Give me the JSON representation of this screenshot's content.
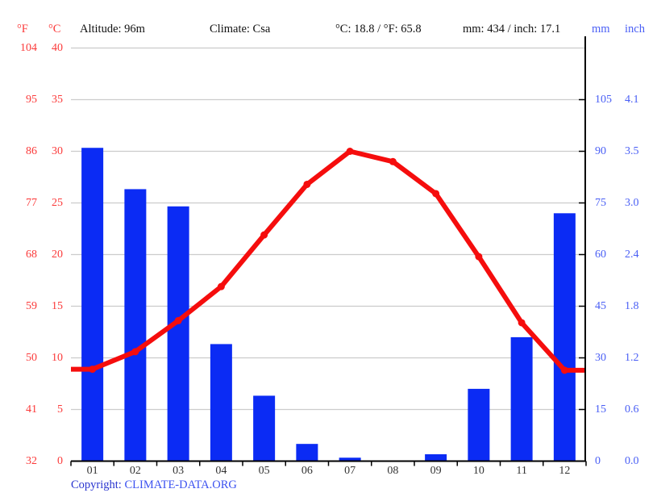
{
  "header": {
    "unit_f": "°F",
    "unit_c": "°C",
    "altitude": "Altitude: 96m",
    "climate": "Climate: Csa",
    "avg_temp": "°C: 18.8 / °F: 65.8",
    "total_precip": "mm: 434 / inch: 17.1",
    "unit_mm": "mm",
    "unit_inch": "inch"
  },
  "footer": {
    "copyright_label": "Copyright:",
    "copyright_link": "CLIMATE-DATA.ORG"
  },
  "colors": {
    "temp_line": "#f50d0d",
    "temp_axis_text": "#fb3a3a",
    "precip_bar": "#0b2bf4",
    "precip_axis_text": "#4a5ff5",
    "grid": "#cccccc",
    "axis": "#000000",
    "header_text": "#111111",
    "month_text": "#333333"
  },
  "chart_data": {
    "type": "combo",
    "title": "Climate graph (Csa), Altitude 96m",
    "categories": [
      "01",
      "02",
      "03",
      "04",
      "05",
      "06",
      "07",
      "08",
      "09",
      "10",
      "11",
      "12"
    ],
    "series": [
      {
        "name": "precipitation",
        "type": "bar",
        "unit": "mm",
        "values": [
          91,
          79,
          74,
          34,
          19,
          5,
          1,
          0,
          2,
          21,
          36,
          72
        ]
      },
      {
        "name": "temperature",
        "type": "line",
        "unit": "°C",
        "values": [
          8.9,
          10.6,
          13.6,
          16.9,
          21.9,
          26.8,
          30.0,
          29.0,
          25.9,
          19.8,
          13.4,
          8.8
        ]
      }
    ],
    "temp_axis": {
      "f_ticks": [
        "104",
        "95",
        "86",
        "77",
        "68",
        "59",
        "50",
        "41",
        "32"
      ],
      "c_ticks": [
        "40",
        "35",
        "30",
        "25",
        "20",
        "15",
        "10",
        "5",
        "0"
      ],
      "c_min": 0,
      "c_max": 40
    },
    "precip_axis": {
      "mm_ticks": [
        "105",
        "90",
        "75",
        "60",
        "45",
        "30",
        "15",
        "0"
      ],
      "inch_ticks": [
        "4.1",
        "3.5",
        "3.0",
        "2.4",
        "1.8",
        "1.2",
        "0.6",
        "0.0"
      ],
      "mm_min": 0,
      "mm_max": 120
    },
    "grid": true,
    "legend_position": "none"
  }
}
